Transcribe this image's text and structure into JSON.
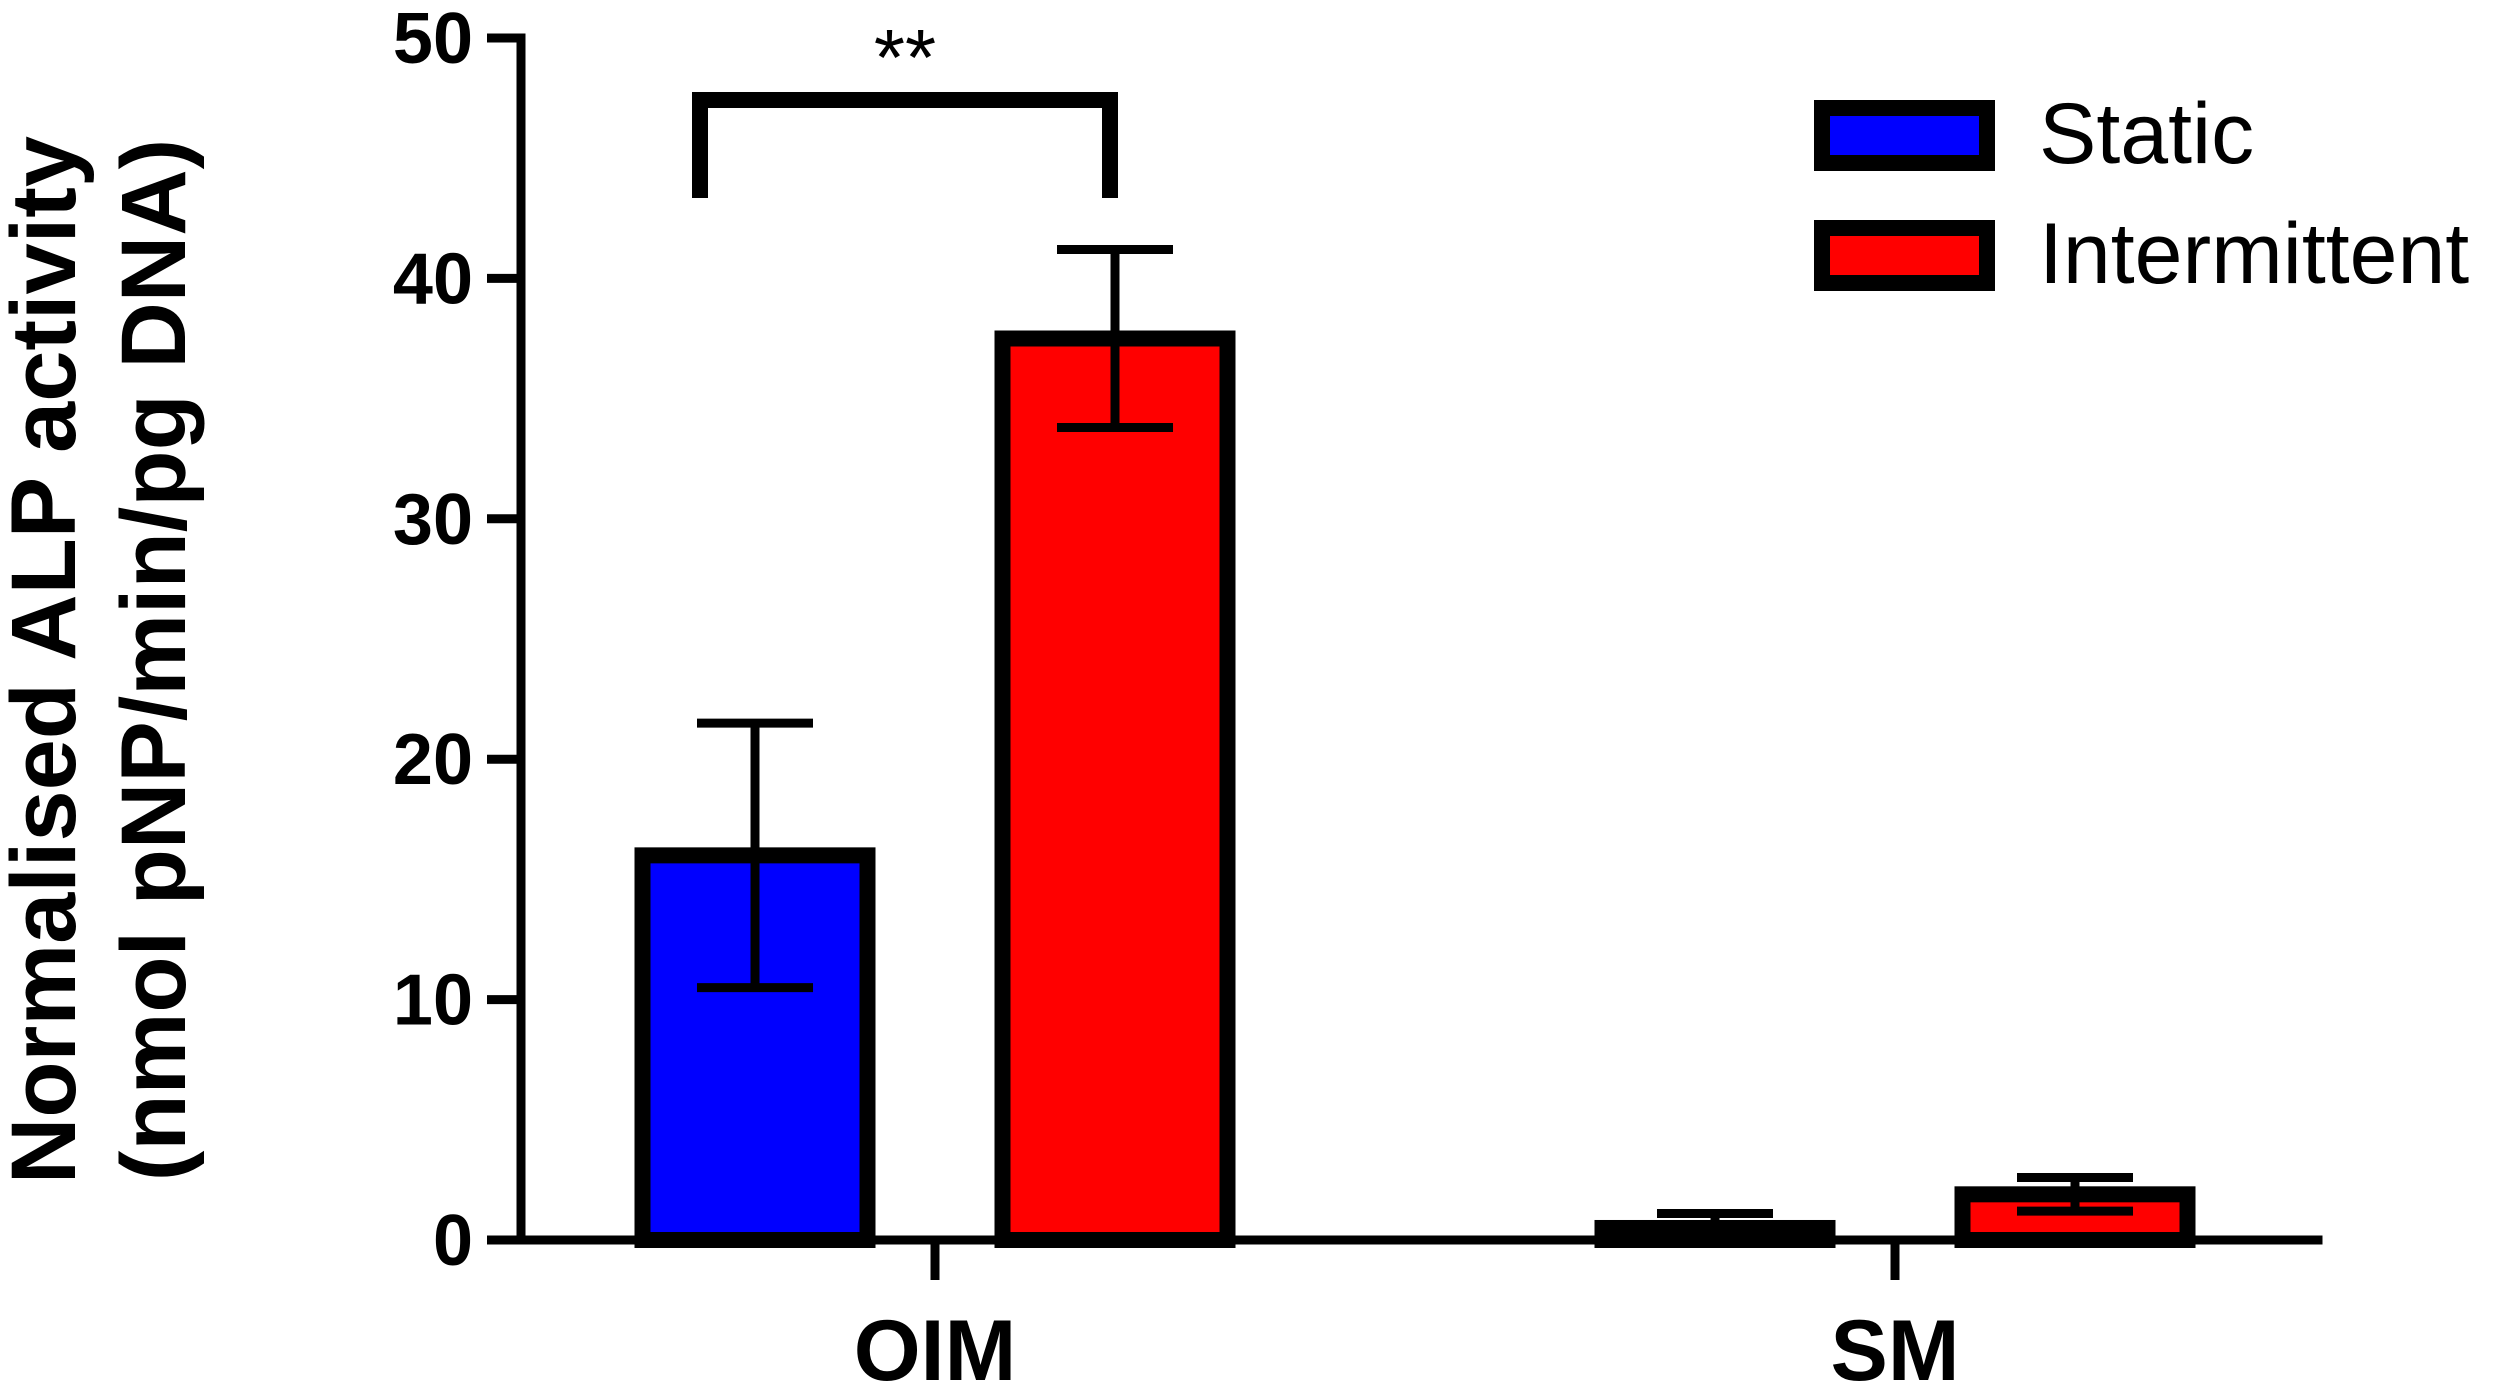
{
  "chart_data": {
    "type": "bar",
    "ylabel_line1": "Normalised ALP activity",
    "ylabel_line2": "(nmol pNP/min/pg DNA)",
    "ylim": [
      0,
      50
    ],
    "yticks": [
      0,
      10,
      20,
      30,
      40,
      50
    ],
    "categories": [
      "OIM",
      "SM"
    ],
    "series": [
      {
        "name": "Static",
        "color": "#0000ff",
        "values": [
          16,
          0.5
        ],
        "errors": [
          5.5,
          0.6
        ]
      },
      {
        "name": "Intermittent",
        "color": "#ff0000",
        "values": [
          37.5,
          1.9
        ],
        "errors": [
          3.7,
          0.7
        ]
      }
    ],
    "legend": {
      "placement": "top-right"
    },
    "annotations": [
      {
        "text": "**",
        "category": "OIM",
        "between_series": [
          "Static",
          "Intermittent"
        ]
      }
    ],
    "grid": false
  }
}
